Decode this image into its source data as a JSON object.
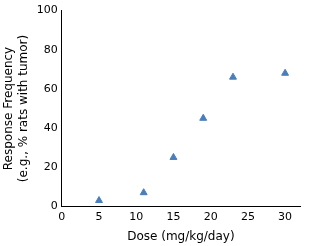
{
  "chart_data": {
    "type": "scatter",
    "x_label": "Dose (mg/kg/day)",
    "y_label": [
      "Response Frequency",
      "(e.g., % rats with tumor)"
    ],
    "x": [
      5,
      11,
      15,
      19,
      23,
      30
    ],
    "values": [
      3,
      7,
      25,
      45,
      66,
      68
    ],
    "color": "#4a7ebb",
    "marker": "triangle",
    "xlim": [
      0,
      32
    ],
    "xticks": [
      0,
      5,
      10,
      15,
      20,
      25,
      30
    ],
    "ylim": [
      0,
      100
    ],
    "yticks": [
      0,
      20,
      40,
      60,
      80,
      100
    ],
    "grid": false
  }
}
